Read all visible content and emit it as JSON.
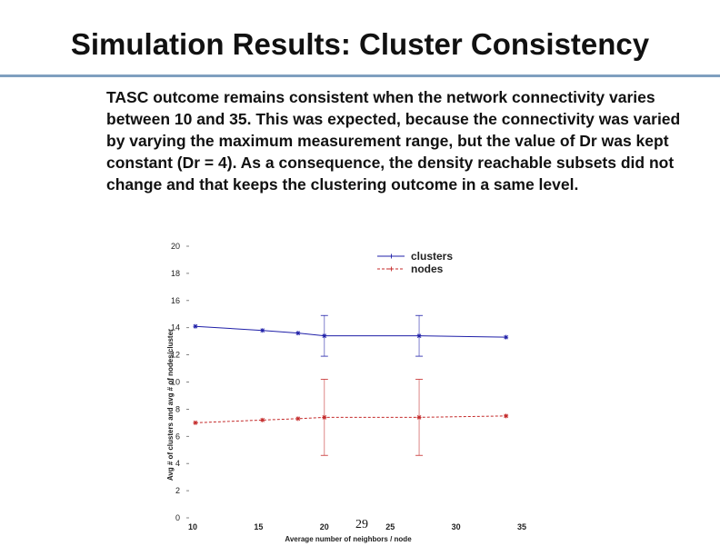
{
  "slide": {
    "title": "Simulation Results: Cluster Consistency",
    "body": "TASC outcome remains consistent when the network connectivity varies between 10 and 35. This was expected, because the connectivity was varied by varying the maximum measurement range, but the value of Dr was kept constant (Dr = 4). As a consequence, the density reachable subsets did not change and that keeps the clustering outcome in a same level.",
    "page_number": "29"
  },
  "chart_data": {
    "type": "line",
    "xlabel": "Average number of neighbors / node",
    "ylabel": "Avg # of clusters and avg # of nodes/cluster",
    "xlim": [
      10,
      35
    ],
    "ylim": [
      0,
      20
    ],
    "x_ticks": [
      "10",
      "15",
      "20",
      "25",
      "30",
      "35"
    ],
    "y_ticks": [
      "0",
      "2",
      "4",
      "6",
      "8",
      "10",
      "12",
      "14",
      "16",
      "18",
      "20"
    ],
    "grid": false,
    "legend_position": "top-right",
    "series": [
      {
        "name": "clusters",
        "color": "#1f1fa8",
        "x": [
          10.2,
          15.3,
          18.0,
          20.0,
          27.2,
          33.8
        ],
        "y": [
          14.1,
          13.8,
          13.6,
          13.4,
          13.4,
          13.3
        ],
        "err": [
          null,
          null,
          null,
          1.5,
          1.5,
          null
        ]
      },
      {
        "name": "nodes",
        "color": "#c42a2a",
        "x": [
          10.2,
          15.3,
          18.0,
          20.0,
          27.2,
          33.8
        ],
        "y": [
          7.0,
          7.2,
          7.3,
          7.4,
          7.4,
          7.5
        ],
        "err": [
          null,
          null,
          null,
          2.8,
          2.8,
          null
        ]
      }
    ]
  }
}
